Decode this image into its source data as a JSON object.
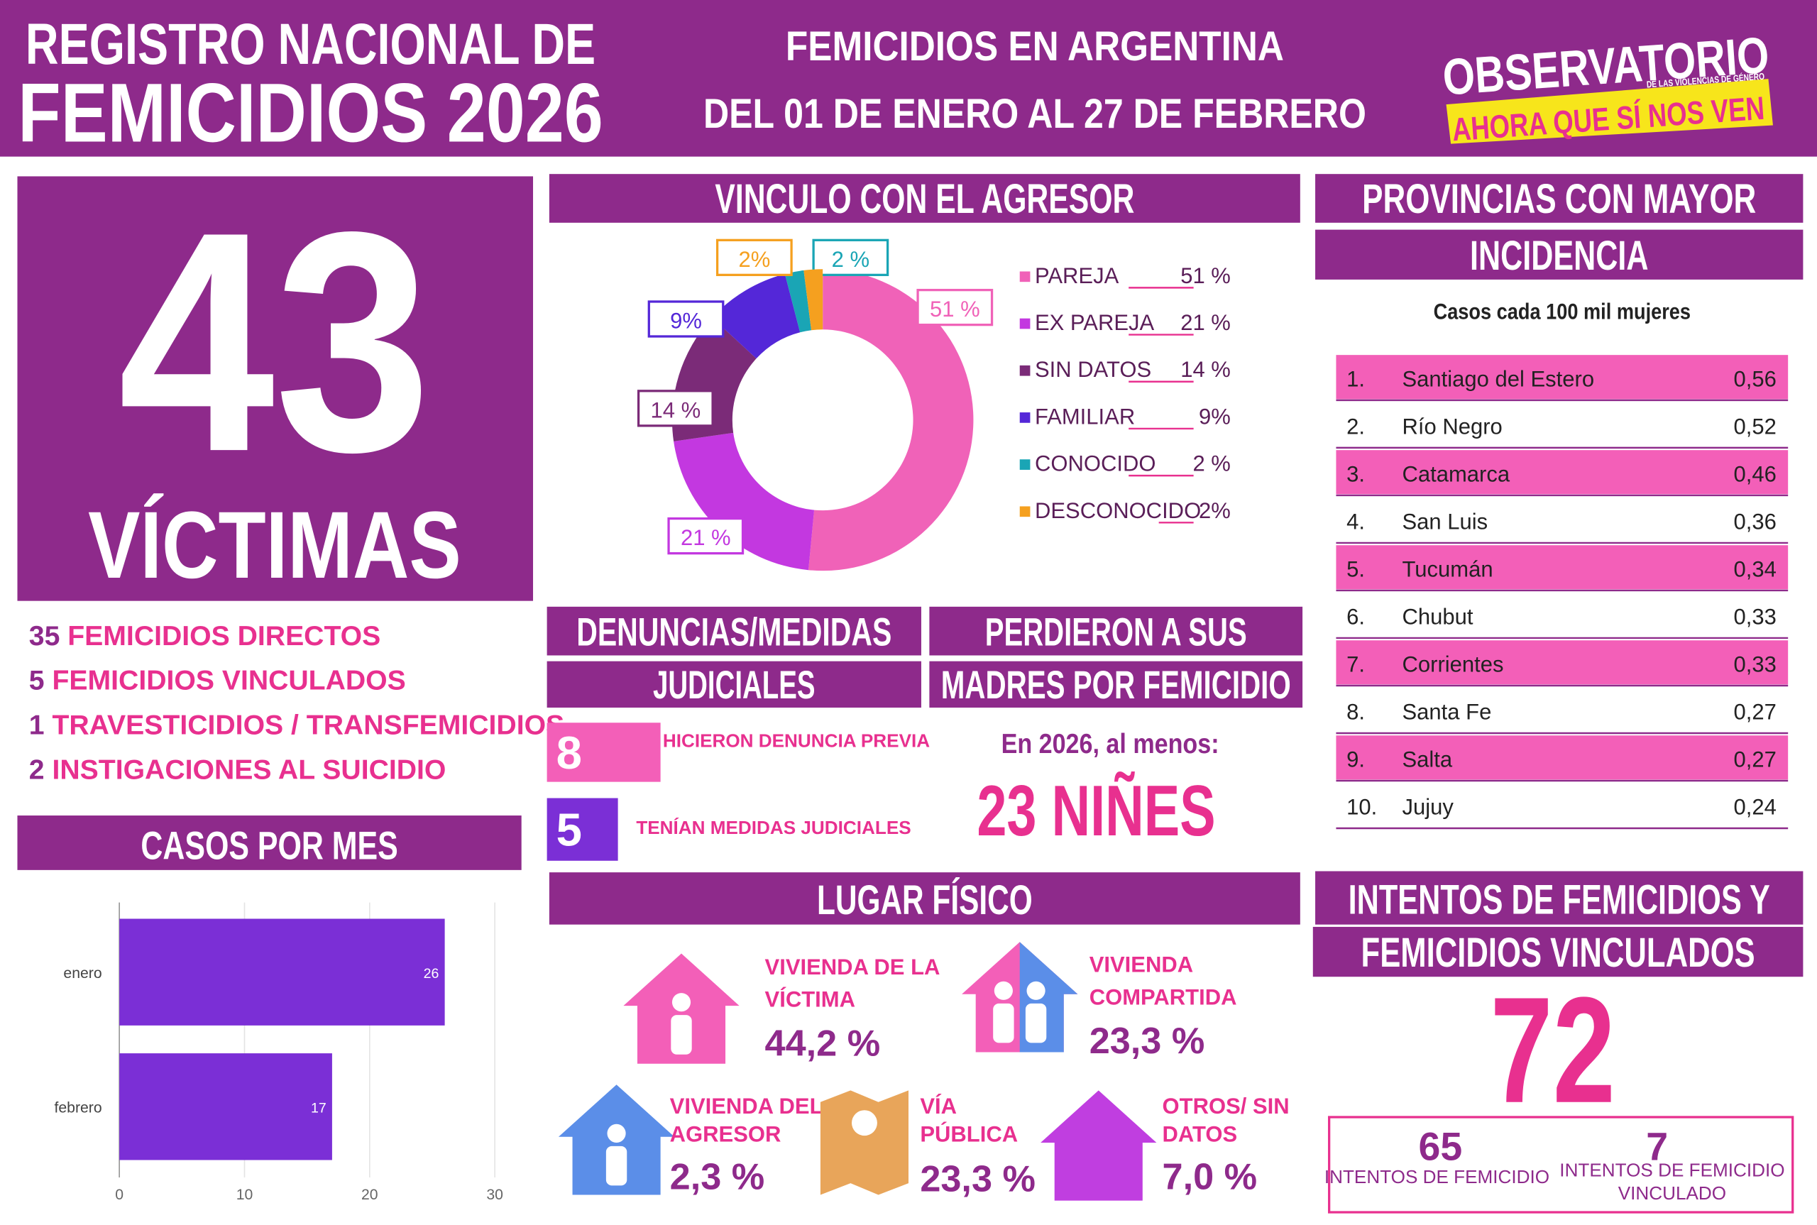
{
  "header": {
    "title_line1": "REGISTRO NACIONAL DE",
    "title_line2": "FEMICIDIOS 2026",
    "subtitle_line1": "FEMICIDIOS EN ARGENTINA",
    "subtitle_line2": "DEL 01 DE ENERO AL 27 DE FEBRERO",
    "logo_line1": "OBSERVATORIO",
    "logo_small": "DE LAS VIOLENCIAS DE GÉNERO",
    "logo_line2": "AHORA QUE SÍ NOS VEN"
  },
  "victims": {
    "total": 43,
    "label": "VÍCTIMAS",
    "breakdown": [
      {
        "count": 35,
        "label": "FEMICIDIOS DIRECTOS"
      },
      {
        "count": 5,
        "label": "FEMICIDIOS VINCULADOS"
      },
      {
        "count": 1,
        "label": "TRAVESTICIDIOS / TRANSFEMICIDIOS"
      },
      {
        "count": 2,
        "label": "INSTIGACIONES AL SUICIDIO"
      }
    ]
  },
  "chart_data": [
    {
      "type": "pie",
      "title": "VINCULO CON EL AGRESOR",
      "categories": [
        "PAREJA",
        "EX PAREJA",
        "SIN DATOS",
        "FAMILIAR",
        "CONOCIDO",
        "DESCONOCIDO"
      ],
      "values": [
        51,
        21,
        14,
        9,
        2,
        2
      ],
      "value_labels": [
        "51 %",
        "21 %",
        "14 %",
        "9%",
        "2 %",
        "2%"
      ],
      "colors": [
        "#f062b8",
        "#c338e0",
        "#7b2b78",
        "#5427d8",
        "#1aa5b5",
        "#f5a01f"
      ]
    },
    {
      "type": "bar",
      "title": "CASOS POR MES",
      "orientation": "horizontal",
      "categories": [
        "enero",
        "febrero"
      ],
      "values": [
        26,
        17
      ],
      "color": "#7b2fd6",
      "xlim": [
        0,
        30
      ],
      "xticks": [
        0,
        10,
        20,
        30
      ],
      "grid": true
    }
  ],
  "complaints": {
    "title_line1": "DENUNCIAS/MEDIDAS",
    "title_line2": "JUDICIALES",
    "items": [
      {
        "value": 8,
        "label": "HICIERON DENUNCIA PREVIA"
      },
      {
        "value": 5,
        "label": "TENÍAN MEDIDAS JUDICIALES"
      }
    ]
  },
  "orphans": {
    "title_line1": "PERDIERON A SUS",
    "title_line2": "MADRES POR FEMICIDIO",
    "intro": "En 2026, al menos:",
    "figure": "23 NIÑES"
  },
  "places": {
    "title": "LUGAR FÍSICO",
    "items": [
      {
        "label_lines": [
          "VIVIENDA DE LA",
          "VÍCTIMA"
        ],
        "value": "44,2 %"
      },
      {
        "label_lines": [
          "VIVIENDA",
          "COMPARTIDA"
        ],
        "value": "23,3 %"
      },
      {
        "label_lines": [
          "VIVIENDA DEL",
          "AGRESOR"
        ],
        "value": "2,3 %"
      },
      {
        "label_lines": [
          "VÍA",
          "PÚBLICA"
        ],
        "value": "23,3 %"
      },
      {
        "label_lines": [
          "OTROS/ SIN",
          "DATOS"
        ],
        "value": "7,0 %"
      }
    ]
  },
  "provinces": {
    "title_line1": "PROVINCIAS CON MAYOR",
    "title_line2": "INCIDENCIA",
    "subtitle": "Casos cada 100 mil mujeres",
    "rows": [
      [
        "1.",
        "Santiago del Estero",
        "0,56"
      ],
      [
        "2.",
        "Río Negro",
        "0,52"
      ],
      [
        "3.",
        "Catamarca",
        "0,46"
      ],
      [
        "4.",
        "San Luis",
        "0,36"
      ],
      [
        "5.",
        "Tucumán",
        "0,34"
      ],
      [
        "6.",
        "Chubut",
        "0,33"
      ],
      [
        "7.",
        "Corrientes",
        "0,33"
      ],
      [
        "8.",
        "Santa Fe",
        "0,27"
      ],
      [
        "9.",
        "Salta",
        "0,27"
      ],
      [
        "10.",
        "Jujuy",
        "0,24"
      ]
    ]
  },
  "attempts": {
    "title_line1": "INTENTOS DE FEMICIDIOS Y",
    "title_line2": "FEMICIDIOS VINCULADOS",
    "total": 72,
    "items": [
      {
        "value": 65,
        "label_lines": [
          "INTENTOS DE FEMICIDIO"
        ]
      },
      {
        "value": 7,
        "label_lines": [
          "INTENTOS DE FEMICIDIO",
          "VINCULADO"
        ]
      }
    ]
  }
}
